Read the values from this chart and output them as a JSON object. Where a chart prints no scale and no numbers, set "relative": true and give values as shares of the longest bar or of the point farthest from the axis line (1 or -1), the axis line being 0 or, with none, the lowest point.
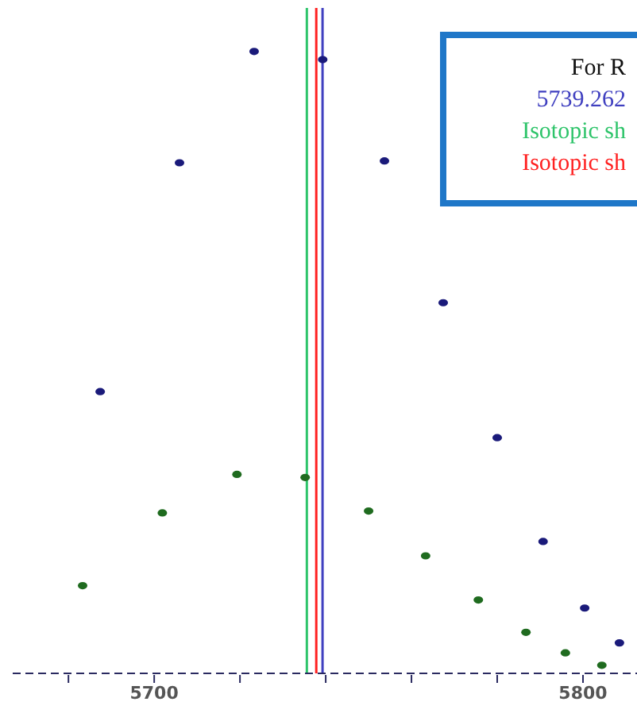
{
  "chart_data": {
    "type": "scatter",
    "relative": true,
    "marker": "circle",
    "xlim": [
      5667,
      5812.6
    ],
    "xticks": [
      {
        "value": 5680,
        "label": null
      },
      5700,
      {
        "value": 5720,
        "label": null
      },
      {
        "value": 5740,
        "label": null
      },
      {
        "value": 5760,
        "label": null
      },
      {
        "value": 5780,
        "label": null
      },
      5800
    ],
    "series": [
      {
        "color": "#1a1a7a",
        "x": [
          5687.4,
          5705.9,
          5723.3,
          5739.3,
          5753.7,
          5767.4,
          5780,
          5790.7,
          5800.4,
          5808.5
        ],
        "values": [
          0.453,
          0.821,
          1,
          0.987,
          0.824,
          0.596,
          0.379,
          0.212,
          0.105,
          0.049
        ]
      },
      {
        "color": "#1f6b1f",
        "x": [
          5683.3,
          5701.9,
          5719.3,
          5735.2,
          5750,
          5763.3,
          5775.6,
          5786.7,
          5795.9,
          5804.4
        ],
        "values": [
          0.141,
          0.258,
          0.32,
          0.315,
          0.261,
          0.189,
          0.118,
          0.066,
          0.033,
          0.013
        ]
      }
    ],
    "ref_lines": [
      {
        "axis": "x",
        "value": 5739.262,
        "label": "5739.262",
        "color": "#4040c0",
        "line_style": "solid"
      },
      {
        "axis": "x",
        "value": 5735.6,
        "label": "Isotopic sh",
        "color": "#2ec46a",
        "line_style": "solid"
      },
      {
        "axis": "x",
        "value": 5737.8,
        "label": "Isotopic sh",
        "color": "#ff2020",
        "line_style": "solid"
      }
    ],
    "annotations": [
      "For R"
    ]
  }
}
